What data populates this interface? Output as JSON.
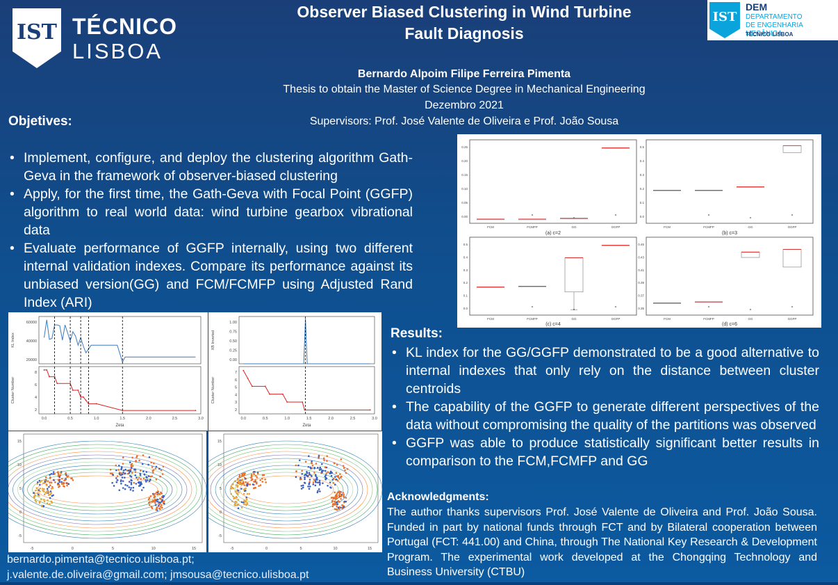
{
  "header": {
    "institution_line1": "TÉCNICO",
    "institution_line2": "LISBOA",
    "dept_short": "DEM",
    "dept_line1": "DEPARTAMENTO",
    "dept_line2": "DE ENGENHARIA MECÂNICA",
    "dept_footer": "TÉCNICO LISBOA",
    "title_line1": "Observer Biased Clustering in Wind Turbine",
    "title_line2": "Fault Diagnosis",
    "author": "Bernardo Alpoim Filipe Ferreira Pimenta",
    "degree": "Thesis to obtain the Master of Science Degree in Mechanical Engineering",
    "date": "Dezembro 2021",
    "supervisors": "Supervisors: Prof. José Valente de Oliveira e Prof. João Sousa"
  },
  "objectives": {
    "heading": "Objetives:",
    "items": [
      "Implement, configure, and deploy the clustering algorithm Gath-Geva in the framework of observer-biased clustering",
      " Apply, for the first time, the Gath-Geva with Focal Point (GGFP) algorithm to real world data: wind turbine gearbox vibrational data",
      "Evaluate performance of GGFP internally, using two different internal validation indexes. Compare its performance against its unbiased version(GG) and FCM/FCMFP using Adjusted Rand Index (ARI)"
    ]
  },
  "results": {
    "heading": "Results:",
    "items": [
      "KL index for the GG/GGFP demonstrated to be a good alternative to internal indexes that only rely on the distance between cluster centroids",
      "The capability of the GGFP to generate different perspectives of the data without compromising the quality of the partitions was observed",
      "GGFP was able to produce statistically significant better results in comparison to the FCM,FCMFP and GG"
    ]
  },
  "acknowledgments": {
    "heading": "Acknowledgments:",
    "text": "The author thanks supervisors Prof. José Valente de Oliveira and Prof. João Sousa. Funded in part by national funds through FCT and by Bilateral cooperation between Portugal (FCT: 441.00) and China, through The National Key Research & Development Program. The experimental work developed at the Chongqing Technology and Business University (CTBU)"
  },
  "contacts": {
    "line1": "bernardo.pimenta@tecnico.ulisboa.pt;",
    "line2": "j.valente.de.oliveira@gmail.com; jmsousa@tecnico.ulisboa.pt"
  },
  "chart_data": [
    {
      "type": "box",
      "caption": "(a)  c=2",
      "categories": [
        "FCM",
        "FCMFP",
        "GG",
        "GGFP"
      ],
      "median": [
        0.001,
        0.0005,
        0.011,
        0.95
      ],
      "ylim": [
        0,
        1
      ],
      "yticks": [
        "0.00",
        "0.05",
        "0.10",
        "0.15",
        "0.20",
        "0.25"
      ]
    },
    {
      "type": "box",
      "caption": "(b)  c=3",
      "categories": [
        "FCM",
        "FCMFP",
        "GG",
        "GGFP"
      ],
      "median": [
        0.2,
        0.2,
        0.23,
        0.55
      ],
      "ylim": [
        -0.05,
        0.6
      ],
      "yticks": [
        "0.0",
        "0.1",
        "0.2",
        "0.3",
        "0.4",
        "0.5"
      ]
    },
    {
      "type": "box",
      "caption": "(c)  c=4",
      "categories": [
        "FCM",
        "FCMFP",
        "GG",
        "GGFP"
      ],
      "median": [
        0.19,
        0.195,
        0.19,
        0.52
      ],
      "ylim": [
        0,
        0.55
      ],
      "yticks": [
        "0.0",
        "0.1",
        "0.2",
        "0.3",
        "0.4",
        "0.5"
      ]
    },
    {
      "type": "box",
      "caption": "(d)  c=6",
      "categories": [
        "FCM",
        "FCMFP",
        "GG",
        "GGFP"
      ],
      "median": [
        0.345,
        0.347,
        0.435,
        0.445
      ],
      "ylim": [
        0.33,
        0.46
      ],
      "yticks": [
        "0.35",
        "0.37",
        "0.39",
        "0.41",
        "0.43",
        "0.45"
      ]
    },
    {
      "type": "line",
      "xlabel": "Zeta",
      "top": {
        "ylabel": "KL Index",
        "yticks": [
          "20000",
          "40000",
          "60000"
        ],
        "x": [
          0,
          0.05,
          0.1,
          0.15,
          0.2,
          0.25,
          0.3,
          0.35,
          0.4,
          0.5,
          0.55,
          0.6,
          0.65,
          0.7,
          0.75,
          0.8,
          0.9,
          1.0,
          1.4,
          1.5,
          1.55,
          2.9
        ],
        "y": [
          47000,
          68000,
          45000,
          46000,
          62000,
          62000,
          61000,
          44000,
          62000,
          43000,
          54000,
          49000,
          38000,
          47000,
          37000,
          29000,
          38000,
          38000,
          38000,
          18000,
          24000,
          24000
        ],
        "ylim": [
          16000,
          72000
        ]
      },
      "bottom": {
        "ylabel": "Cluster Number",
        "yticks": [
          "2",
          "4",
          "6",
          "8"
        ],
        "x": [
          0,
          0.05,
          0.1,
          0.2,
          0.25,
          0.5,
          0.55,
          0.65,
          0.7,
          0.75,
          0.8,
          0.85,
          1.0,
          1.5,
          2.9
        ],
        "y": [
          8,
          8,
          7,
          7,
          6,
          6,
          5,
          5,
          4,
          4,
          3.5,
          3,
          3,
          2,
          2
        ],
        "ylim": [
          1.5,
          8.5
        ]
      },
      "xticks": [
        "0.0",
        "0.5",
        "1.0",
        "1.5",
        "2.0",
        "2.5",
        "3.0"
      ],
      "vlines": [
        0.2,
        0.5,
        0.7,
        0.85,
        1.5
      ]
    },
    {
      "type": "line",
      "xlabel": "Zeta",
      "top": {
        "ylabel": "XB Inverted",
        "yticks": [
          "0.00",
          "0.25",
          "0.50",
          "0.75",
          "1.00"
        ],
        "x": [
          0,
          1.3,
          1.38,
          1.42,
          1.46,
          2.9
        ],
        "y": [
          0,
          0,
          0,
          1.05,
          0,
          0
        ],
        "ylim": [
          0,
          1.1
        ]
      },
      "bottom": {
        "ylabel": "Cluster Number",
        "yticks": [
          "2",
          "3",
          "4",
          "5",
          "6",
          "7"
        ],
        "x": [
          0,
          0.1,
          0.2,
          0.5,
          0.6,
          0.9,
          1.0,
          1.35,
          1.4,
          2.9
        ],
        "y": [
          7,
          6,
          5,
          5,
          4,
          4,
          3,
          3,
          2,
          2
        ],
        "ylim": [
          1.5,
          7.5
        ]
      },
      "xticks": [
        "0.0",
        "0.5",
        "1.0",
        "1.5",
        "2.0",
        "2.5",
        "3.0"
      ],
      "vlines": [
        1.42
      ]
    },
    {
      "type": "scatter",
      "xticks": [
        "-5",
        "0",
        "5",
        "10",
        "15"
      ],
      "yticks": [
        "-5",
        "0",
        "5",
        "10",
        "15"
      ]
    },
    {
      "type": "scatter",
      "xticks": [
        "-5",
        "0",
        "5",
        "10",
        "15"
      ],
      "yticks": [
        "-5",
        "0",
        "5",
        "10",
        "15"
      ]
    }
  ]
}
